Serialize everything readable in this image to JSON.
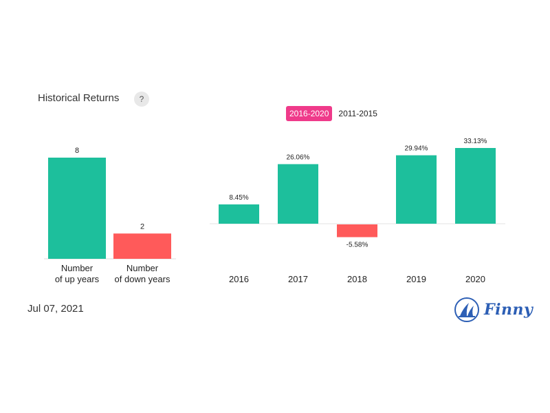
{
  "header": {
    "title": "Historical Returns",
    "help_label": "?",
    "tabs": [
      {
        "label": "2016-2020",
        "active": true
      },
      {
        "label": "2011-2015",
        "active": false
      }
    ]
  },
  "footer": {
    "date": "Jul 07, 2021",
    "logo_text": "Finny"
  },
  "colors": {
    "positive": "#1dbf9c",
    "negative": "#ff5a5a",
    "accent": "#ef3a8a",
    "brand": "#2d5fb5"
  },
  "chart_data": [
    {
      "type": "bar",
      "categories": [
        "Number\nof up years",
        "Number\nof down years"
      ],
      "values": [
        8,
        2
      ],
      "data_labels": [
        "8",
        "2"
      ],
      "colors": [
        "#1dbf9c",
        "#ff5a5a"
      ],
      "ylim": [
        0,
        8
      ]
    },
    {
      "type": "bar",
      "categories": [
        "2016",
        "2017",
        "2018",
        "2019",
        "2020"
      ],
      "values": [
        8.45,
        26.06,
        -5.58,
        29.94,
        33.13
      ],
      "data_labels": [
        "8.45%",
        "26.06%",
        "-5.58%",
        "29.94%",
        "33.13%"
      ],
      "ylim": [
        -5.58,
        33.13
      ]
    }
  ]
}
